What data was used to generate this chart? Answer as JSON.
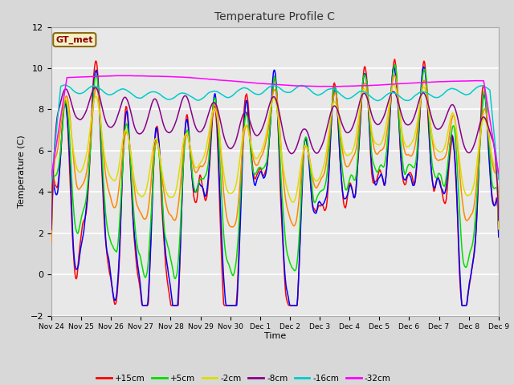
{
  "title": "Temperature Profile C",
  "xlabel": "Time",
  "ylabel": "Temperature (C)",
  "ylim": [
    -2,
    12
  ],
  "yticks": [
    -2,
    0,
    2,
    4,
    6,
    8,
    10,
    12
  ],
  "xtick_labels": [
    "Nov 24",
    "Nov 25",
    "Nov 26",
    "Nov 27",
    "Nov 28",
    "Nov 29",
    "Nov 30",
    "Dec 1",
    "Dec 2",
    "Dec 3",
    "Dec 4",
    "Dec 5",
    "Dec 6",
    "Dec 7",
    "Dec 8",
    "Dec 9"
  ],
  "series_colors": {
    "+15cm": "#ff0000",
    "+10cm": "#0000ff",
    "+5cm": "#00dd00",
    "0cm": "#ff8800",
    "-2cm": "#dddd00",
    "-8cm": "#880088",
    "-16cm": "#00cccc",
    "-32cm": "#ff00ff"
  },
  "legend_label": "GT_met",
  "plot_bg": "#e8e8e8",
  "grid_color": "#ffffff",
  "n_points": 720,
  "figsize": [
    6.4,
    4.8
  ],
  "dpi": 100
}
